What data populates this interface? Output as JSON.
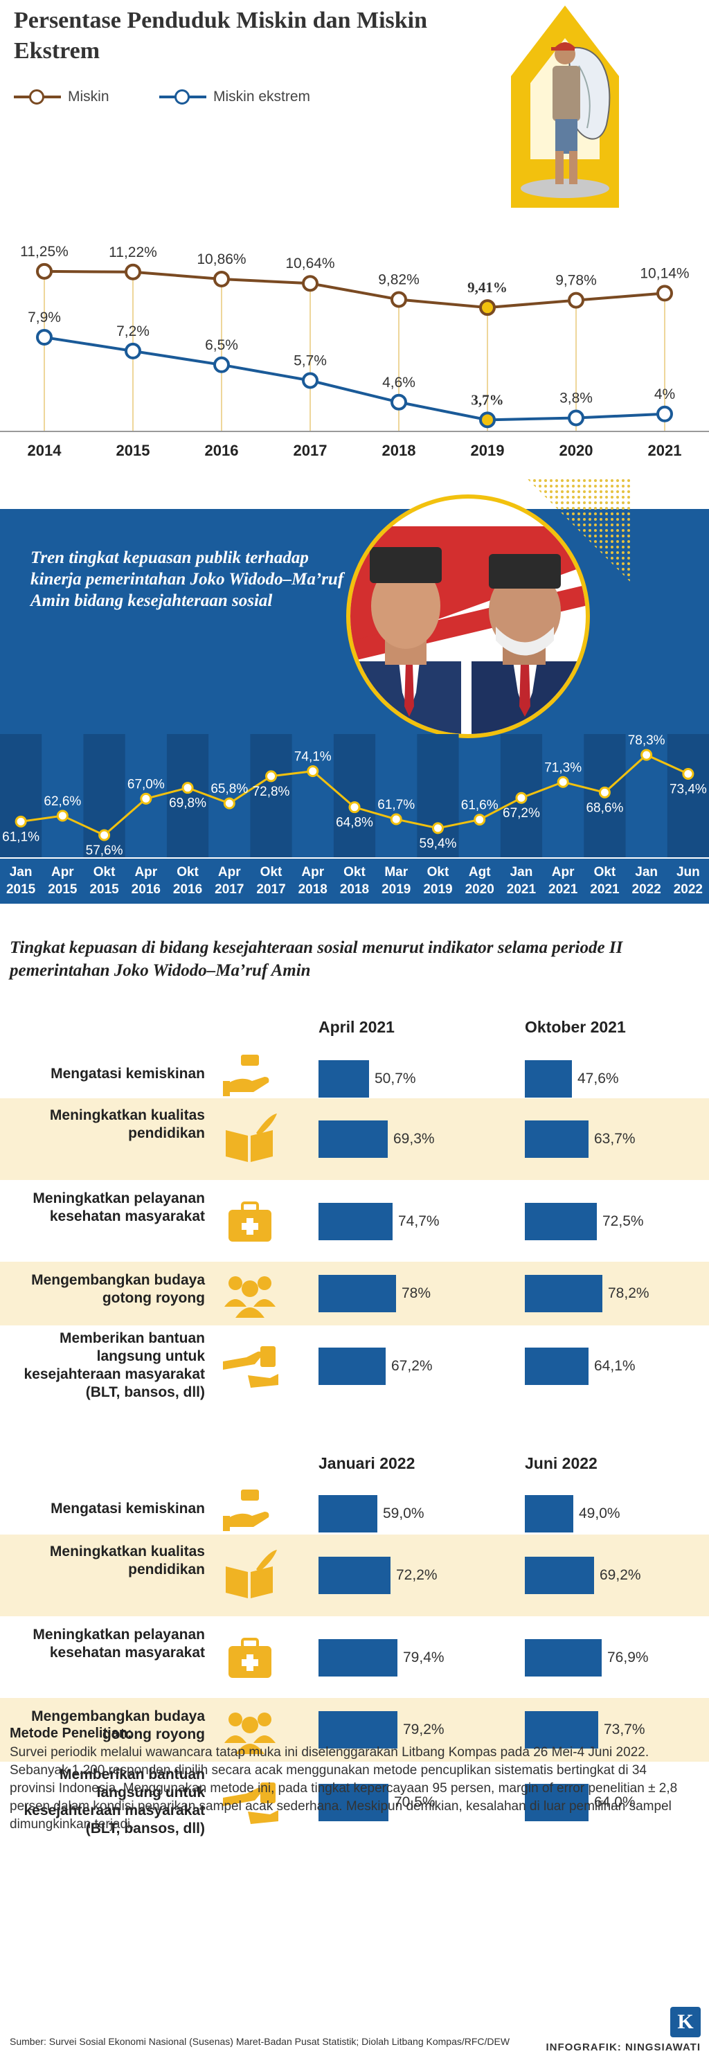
{
  "header": {
    "title": "Persentase Penduduk Miskin dan Miskin Ekstrem"
  },
  "chart_data": [
    {
      "type": "line",
      "title": "Persentase Penduduk Miskin dan Miskin Ekstrem",
      "categories": [
        "2014",
        "2015",
        "2016",
        "2017",
        "2018",
        "2019",
        "2020",
        "2021"
      ],
      "series": [
        {
          "name": "Miskin",
          "color": "#7a4a22",
          "values": [
            11.25,
            11.22,
            10.86,
            10.64,
            9.82,
            9.41,
            9.78,
            10.14
          ],
          "labels": [
            "11,25%",
            "11,22%",
            "10,86%",
            "10,64%",
            "9,82%",
            "9,41%",
            "9,78%",
            "10,14%"
          ]
        },
        {
          "name": "Miskin ekstrem",
          "color": "#1a5a98",
          "values": [
            7.9,
            7.2,
            6.5,
            5.7,
            4.6,
            3.7,
            3.8,
            4.0
          ],
          "labels": [
            "7,9%",
            "7,2%",
            "6,5%",
            "5,7%",
            "4,6%",
            "3,7%",
            "3,8%",
            "4%"
          ]
        }
      ],
      "highlight_category": "2019",
      "highlight_color": "#f2c10e"
    },
    {
      "type": "line",
      "title": "Tren tingkat kepuasan publik terhadap kinerja pemerintahan Joko Widodo–Ma’ruf Amin bidang kesejahteraan sosial",
      "categories": [
        {
          "month": "Jan",
          "year": "2015"
        },
        {
          "month": "Apr",
          "year": "2015"
        },
        {
          "month": "Okt",
          "year": "2015"
        },
        {
          "month": "Apr",
          "year": "2016"
        },
        {
          "month": "Okt",
          "year": "2016"
        },
        {
          "month": "Apr",
          "year": "2017"
        },
        {
          "month": "Okt",
          "year": "2017"
        },
        {
          "month": "Apr",
          "year": "2018"
        },
        {
          "month": "Okt",
          "year": "2018"
        },
        {
          "month": "Mar",
          "year": "2019"
        },
        {
          "month": "Okt",
          "year": "2019"
        },
        {
          "month": "Agt",
          "year": "2020"
        },
        {
          "month": "Jan",
          "year": "2021"
        },
        {
          "month": "Apr",
          "year": "2021"
        },
        {
          "month": "Okt",
          "year": "2021"
        },
        {
          "month": "Jan",
          "year": "2022"
        },
        {
          "month": "Jun",
          "year": "2022"
        }
      ],
      "values": [
        61.1,
        62.6,
        57.6,
        67.0,
        69.8,
        65.8,
        72.8,
        74.1,
        64.8,
        61.7,
        59.4,
        61.6,
        67.2,
        71.3,
        68.6,
        78.3,
        73.4
      ],
      "labels": [
        "61,1%",
        "62,6%",
        "57,6%",
        "67,0%",
        "69,8%",
        "65,8%",
        "72,8%",
        "74,1%",
        "64,8%",
        "61,7%",
        "59,4%",
        "61,6%",
        "67,2%",
        "71,3%",
        "68,6%",
        "78,3%",
        "73,4%"
      ],
      "label_pos": [
        "below",
        "above",
        "below",
        "above",
        "below",
        "above",
        "below",
        "above",
        "below",
        "above",
        "below",
        "above",
        "below",
        "above",
        "below",
        "above",
        "below"
      ],
      "line_color": "#f2c10e"
    },
    {
      "type": "bar",
      "title": "Tingkat kepuasan di bidang kesejahteraan sosial menurut indikator selama periode II pemerintahan Joko Widodo–Ma’ruf Amin",
      "bar_color": "#1a5c9c",
      "categories": [
        {
          "label": "Mengatasi kemiskinan",
          "icon": "money-hand-icon"
        },
        {
          "label": "Meningkatkan kualitas pendidikan",
          "icon": "book-quill-icon"
        },
        {
          "label": "Meningkatkan pelayanan kesehatan masyarakat",
          "icon": "medical-kit-icon"
        },
        {
          "label": "Mengembangkan budaya gotong royong",
          "icon": "people-group-icon"
        },
        {
          "label": "Memberikan bantuan langsung untuk kesejahteraan masyarakat (BLT, bansos, dll)",
          "icon": "hand-giving-icon"
        }
      ],
      "groups": [
        {
          "periods": [
            {
              "name": "April 2021",
              "values": [
                50.7,
                69.3,
                74.7,
                78.0,
                67.2
              ],
              "labels": [
                "50,7%",
                "69,3%",
                "74,7%",
                "78%",
                "67,2%"
              ]
            },
            {
              "name": "Oktober 2021",
              "values": [
                47.6,
                63.7,
                72.5,
                78.2,
                64.1
              ],
              "labels": [
                "47,6%",
                "63,7%",
                "72,5%",
                "78,2%",
                "64,1%"
              ]
            }
          ]
        },
        {
          "periods": [
            {
              "name": "Januari 2022",
              "values": [
                59.0,
                72.2,
                79.4,
                79.2,
                70.5
              ],
              "labels": [
                "59,0%",
                "72,2%",
                "79,4%",
                "79,2%",
                "70,5%"
              ]
            },
            {
              "name": "Juni 2022",
              "values": [
                49.0,
                69.2,
                76.9,
                73.7,
                64.0
              ],
              "labels": [
                "49,0%",
                "69,2%",
                "76,9%",
                "73,7%",
                "64,0%"
              ]
            }
          ]
        }
      ]
    }
  ],
  "methodology": {
    "heading": "Metode Penelitian:",
    "text": "Survei periodik melalui wawancara tatap muka ini diselenggarakan Litbang Kompas pada 26 Mei-4 Juni 2022. Sebanyak 1.200 responden dipilih secara acak menggunakan metode pencuplikan sistematis bertingkat di 34 provinsi Indonesia. Menggunakan metode ini, pada tingkat kepercayaan 95 persen, margin of error penelitian ± 2,8 persen dalam kondisi penarikan sampel acak sederhana. Meskipun demikian, kesalahan di luar pemilihan sampel dimungkinkan terjadi."
  },
  "footer": {
    "source": "Sumber: Survei Sosial Ekonomi Nasional (Susenas) Maret-Badan Pusat Statistik; Diolah Litbang Kompas/RFC/DEW",
    "logo_letter": "K",
    "credit": "INFOGRAFIK: NINGSIAWATI"
  }
}
